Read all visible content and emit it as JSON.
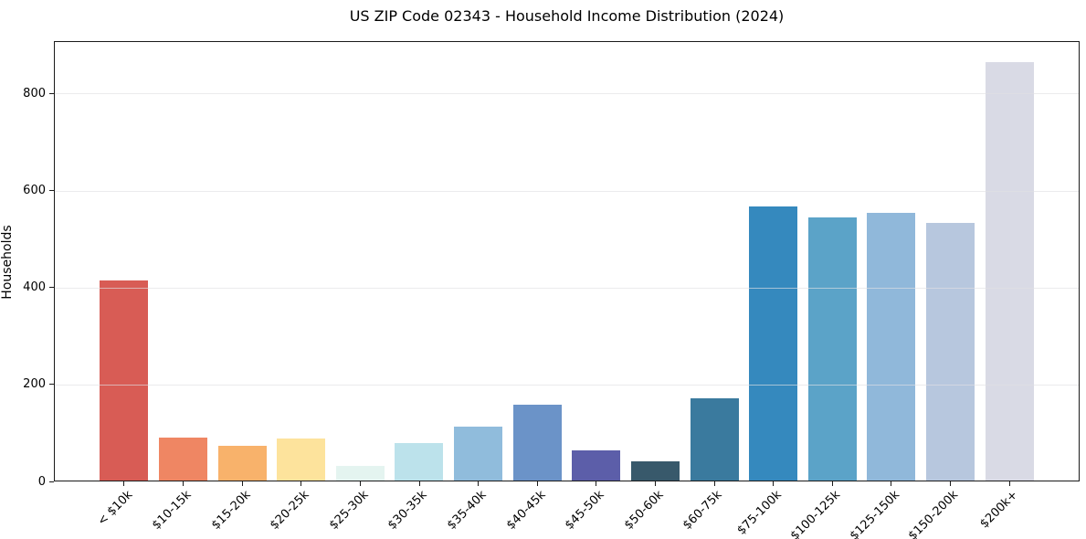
{
  "chart_data": {
    "type": "bar",
    "title": "US ZIP Code 02343 - Household Income Distribution (2024)",
    "xlabel": "",
    "ylabel": "Households",
    "categories": [
      "< $10k",
      "$10-15k",
      "$15-20k",
      "$20-25k",
      "$25-30k",
      "$30-35k",
      "$35-40k",
      "$40-45k",
      "$45-50k",
      "$50-60k",
      "$60-75k",
      "$75-100k",
      "$100-125k",
      "$125-150k",
      "$150-200k",
      "$200k+"
    ],
    "values": [
      412,
      88,
      71,
      87,
      30,
      77,
      111,
      156,
      62,
      40,
      170,
      565,
      542,
      552,
      532,
      863
    ],
    "bar_colors": [
      "#d85c55",
      "#ef8663",
      "#f8b26b",
      "#fde39c",
      "#e4f4f0",
      "#bce2eb",
      "#90bcdc",
      "#6b93c8",
      "#5c5ea9",
      "#38596b",
      "#3a7a9e",
      "#3589be",
      "#5ba3c8",
      "#90b8da",
      "#b7c7de",
      "#d9dae5"
    ],
    "yticks": [
      0,
      200,
      400,
      600,
      800
    ],
    "ylim": [
      0,
      908
    ],
    "grid": "horizontal",
    "legend": "none",
    "x_tick_rotation": 45
  },
  "colors": {
    "background": "#ffffff",
    "spine": "#1a1a1a",
    "grid": "#e5e5e5",
    "text": "#000000"
  }
}
